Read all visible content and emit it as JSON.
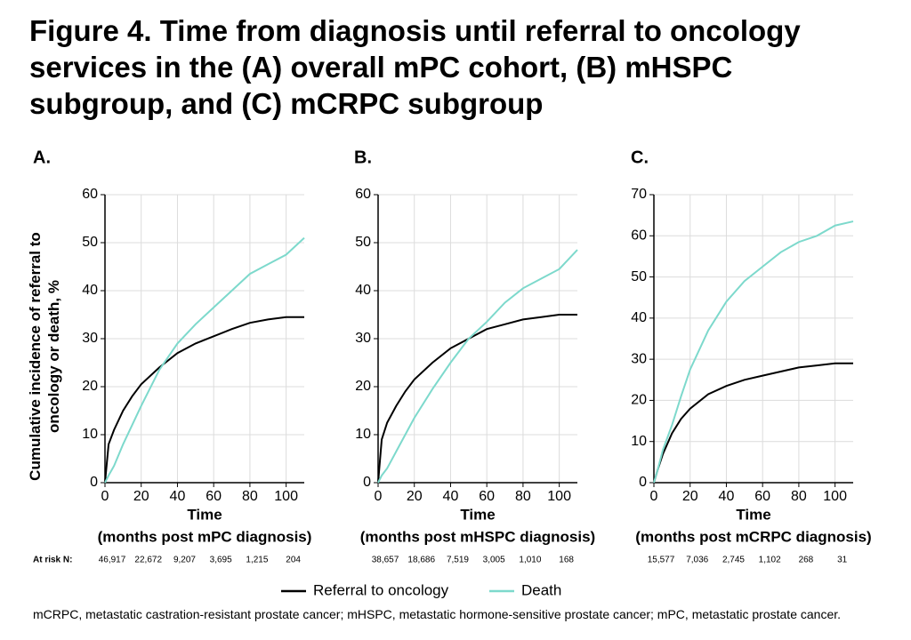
{
  "title": "Figure 4. Time from diagnosis until referral to oncology services in the (A) overall mPC cohort, (B) mHSPC subgroup, and (C) mCRPC subgroup",
  "ylabel": "Cumulative incidence of referral to oncology or death, %",
  "at_risk_label": "At risk N:",
  "footnote": "mCRPC, metastatic castration-resistant prostate cancer; mHSPC, metastatic hormone-sensitive prostate cancer; mPC, metastatic prostate cancer.",
  "chart_data": [
    {
      "type": "line",
      "panel": "A.",
      "xlabel": "Time",
      "xlabel_detail": "(months post mPC diagnosis)",
      "x": [
        0,
        2,
        5,
        10,
        15,
        20,
        30,
        40,
        50,
        60,
        70,
        80,
        90,
        100,
        110
      ],
      "series": [
        {
          "name": "Referral to oncology",
          "color": "#000000",
          "values": [
            0,
            8,
            11,
            15,
            18,
            20.5,
            24,
            27,
            29,
            30.5,
            32,
            33.3,
            34,
            34.5,
            34.5
          ]
        },
        {
          "name": "Death",
          "color": "#7dd9cc",
          "values": [
            0,
            1.5,
            3.5,
            8,
            12,
            16,
            23.5,
            29,
            33,
            36.5,
            40,
            43.5,
            45.5,
            47.5,
            51
          ]
        }
      ],
      "xlim": [
        0,
        110
      ],
      "xticks": [
        0,
        20,
        40,
        60,
        80,
        100
      ],
      "ylim": [
        0,
        60
      ],
      "yticks": [
        0,
        10,
        20,
        30,
        40,
        50,
        60
      ],
      "grid": true,
      "at_risk": [
        "46,917",
        "22,672",
        "9,207",
        "3,695",
        "1,215",
        "204"
      ]
    },
    {
      "type": "line",
      "panel": "B.",
      "xlabel": "Time",
      "xlabel_detail": "(months post mHSPC diagnosis)",
      "x": [
        0,
        2,
        5,
        10,
        15,
        20,
        30,
        40,
        50,
        60,
        70,
        80,
        90,
        100,
        110
      ],
      "series": [
        {
          "color": "#000000",
          "values": [
            0,
            9,
            12.5,
            16,
            19,
            21.5,
            25,
            28,
            30,
            32,
            33,
            34,
            34.5,
            35,
            35
          ]
        },
        {
          "color": "#7dd9cc",
          "values": [
            0,
            1.5,
            3,
            6.5,
            10,
            13.5,
            19.5,
            25,
            30,
            33.5,
            37.5,
            40.5,
            42.5,
            44.5,
            48.5
          ]
        }
      ],
      "xlim": [
        0,
        110
      ],
      "xticks": [
        0,
        20,
        40,
        60,
        80,
        100
      ],
      "ylim": [
        0,
        60
      ],
      "yticks": [
        0,
        10,
        20,
        30,
        40,
        50,
        60
      ],
      "grid": true,
      "at_risk": [
        "38,657",
        "18,686",
        "7,519",
        "3,005",
        "1,010",
        "168"
      ]
    },
    {
      "type": "line",
      "panel": "C.",
      "xlabel": "Time",
      "xlabel_detail": "(months post mCRPC diagnosis)",
      "x": [
        0,
        2,
        5,
        10,
        15,
        20,
        30,
        40,
        50,
        60,
        70,
        80,
        90,
        100,
        110
      ],
      "series": [
        {
          "color": "#000000",
          "values": [
            0,
            3,
            7,
            12,
            15.5,
            18,
            21.5,
            23.5,
            25,
            26,
            27,
            28,
            28.5,
            29,
            29
          ]
        },
        {
          "color": "#7dd9cc",
          "values": [
            0,
            3,
            8,
            14,
            21,
            27.5,
            37,
            44,
            49,
            52.5,
            56,
            58.5,
            60,
            62.5,
            63.5
          ]
        }
      ],
      "xlim": [
        0,
        110
      ],
      "xticks": [
        0,
        20,
        40,
        60,
        80,
        100
      ],
      "ylim": [
        0,
        70
      ],
      "yticks": [
        0,
        10,
        20,
        30,
        40,
        50,
        60,
        70
      ],
      "grid": true,
      "at_risk": [
        "15,577",
        "7,036",
        "2,745",
        "1,102",
        "268",
        "31"
      ]
    }
  ]
}
